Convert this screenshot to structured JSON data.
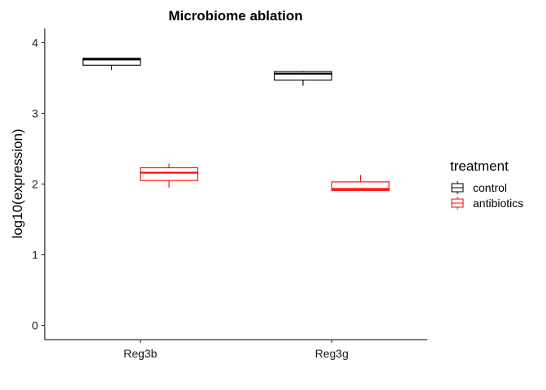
{
  "chart_data": {
    "type": "boxplot",
    "title": "Microbiome ablation",
    "xlabel": "",
    "ylabel": "log10(expression)",
    "categories": [
      "Reg3b",
      "Reg3g"
    ],
    "ylim": [
      -0.2,
      4.2
    ],
    "yticks": [
      0,
      1,
      2,
      3,
      4
    ],
    "grid": false,
    "legend": {
      "title": "treatment",
      "position": "right"
    },
    "series": [
      {
        "name": "control",
        "color": "#000000",
        "boxes": [
          {
            "category": "Reg3b",
            "min": 3.61,
            "q1": 3.68,
            "median": 3.76,
            "q3": 3.78,
            "max": 3.78
          },
          {
            "category": "Reg3g",
            "min": 3.39,
            "q1": 3.47,
            "median": 3.56,
            "q3": 3.59,
            "max": 3.6
          }
        ]
      },
      {
        "name": "antibiotics",
        "color": "#ff0000",
        "boxes": [
          {
            "category": "Reg3b",
            "min": 1.95,
            "q1": 2.05,
            "median": 2.16,
            "q3": 2.23,
            "max": 2.29
          },
          {
            "category": "Reg3g",
            "min": 1.91,
            "q1": 1.91,
            "median": 1.93,
            "q3": 2.03,
            "max": 2.13
          }
        ]
      }
    ]
  }
}
